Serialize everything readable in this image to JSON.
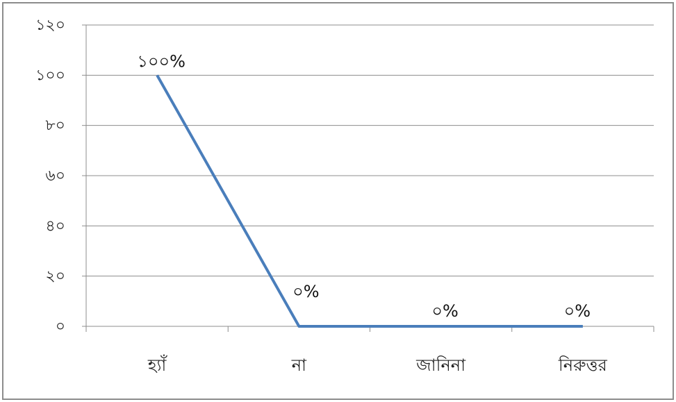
{
  "chart_data": {
    "type": "line",
    "categories": [
      "হ্যাঁ",
      "না",
      "জানিনা",
      "নিরুত্তর"
    ],
    "values": [
      100,
      0,
      0,
      0
    ],
    "data_labels": [
      "১০০%",
      "০%",
      "০%",
      "০%"
    ],
    "y_ticks": [
      {
        "value": 0,
        "label": "০"
      },
      {
        "value": 20,
        "label": "২০"
      },
      {
        "value": 40,
        "label": "৪০"
      },
      {
        "value": 60,
        "label": "৬০"
      },
      {
        "value": 80,
        "label": "৮০"
      },
      {
        "value": 100,
        "label": "১০০"
      },
      {
        "value": 120,
        "label": "১২০"
      }
    ],
    "ylim": [
      0,
      120
    ],
    "grid": true,
    "legend": "none",
    "title": "",
    "xlabel": "",
    "ylabel": "",
    "colors": {
      "line": "#4a7ebb",
      "grid": "#8c8c8c",
      "axis": "#8c8c8c"
    }
  }
}
